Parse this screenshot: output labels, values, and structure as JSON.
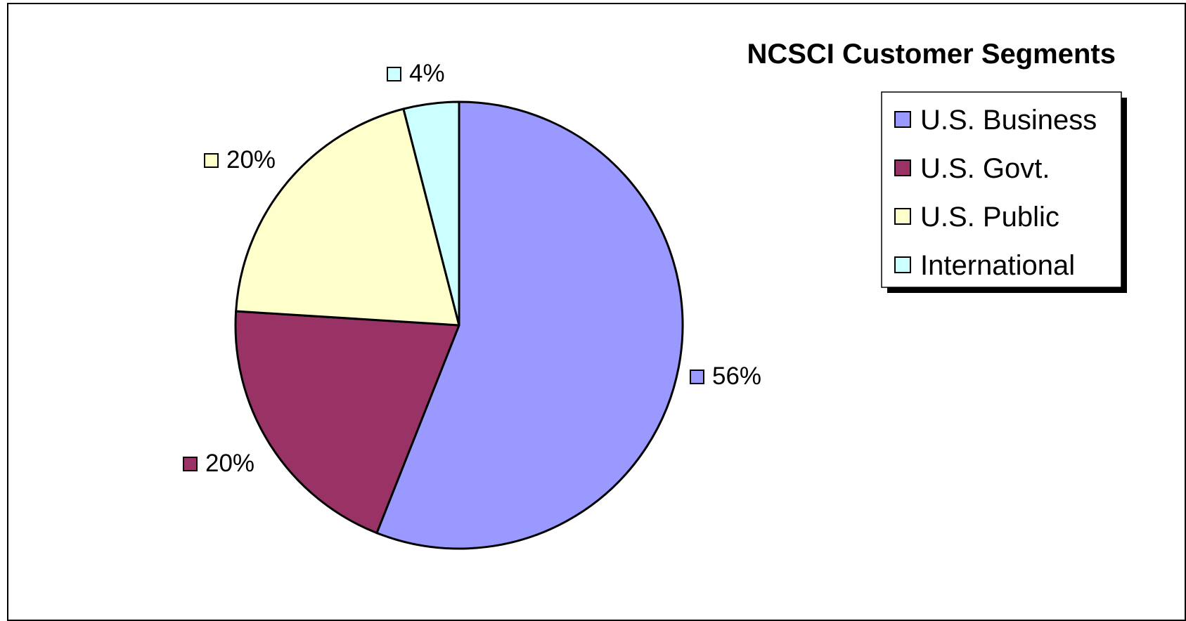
{
  "chart_data": {
    "type": "pie",
    "title": "NCSCI Customer Segments",
    "categories": [
      "U.S. Business",
      "U.S. Govt.",
      "U.S. Public",
      "International"
    ],
    "values": [
      56,
      20,
      20,
      4
    ],
    "value_labels": [
      "56%",
      "20%",
      "20%",
      "4%"
    ],
    "colors": [
      "#9999ff",
      "#993366",
      "#ffffcc",
      "#ccffff"
    ],
    "start_angle": "12 o'clock",
    "direction": "clockwise",
    "legend": {
      "position": "right",
      "entries": [
        "U.S. Business",
        "U.S. Govt.",
        "U.S. Public",
        "International"
      ]
    }
  }
}
